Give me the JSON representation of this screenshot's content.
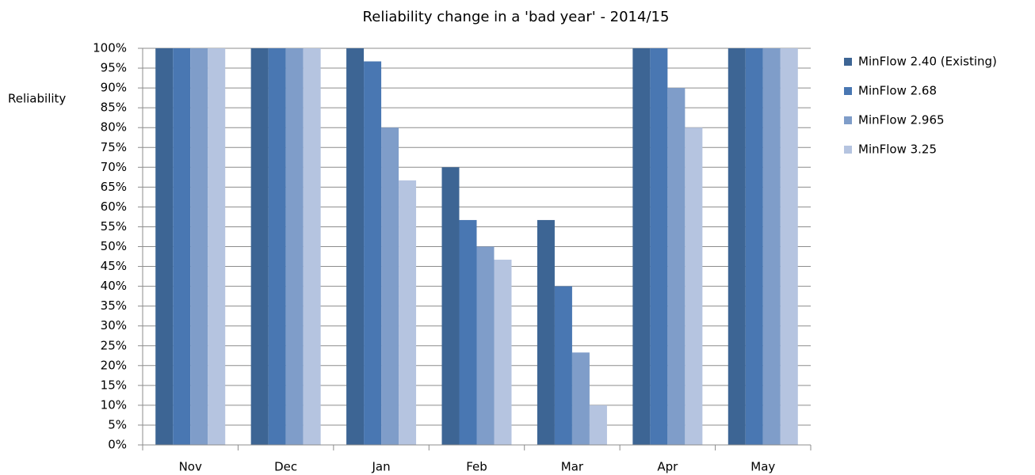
{
  "chart_data": {
    "type": "bar",
    "title": "Reliability change in a 'bad year' - 2014/15",
    "y_label": "Reliability",
    "categories": [
      "Nov",
      "Dec",
      "Jan",
      "Feb",
      "Mar",
      "Apr",
      "May"
    ],
    "series": [
      {
        "name": "MinFlow 2.40 (Existing)",
        "color": "#3d6594",
        "values": [
          100,
          100,
          100,
          70,
          56.7,
          100,
          100
        ]
      },
      {
        "name": "MinFlow 2.68",
        "color": "#4977b2",
        "values": [
          100,
          100,
          96.7,
          56.7,
          40,
          100,
          100
        ]
      },
      {
        "name": "MinFlow 2.965",
        "color": "#7f9dc9",
        "values": [
          100,
          100,
          80,
          50,
          23.3,
          90,
          100
        ]
      },
      {
        "name": "MinFlow 3.25",
        "color": "#b5c4e0",
        "values": [
          100,
          100,
          66.7,
          46.7,
          10,
          80,
          100
        ]
      }
    ],
    "ylim": [
      0,
      100
    ],
    "yticks": [
      {
        "value": 0,
        "label": "0%"
      },
      {
        "value": 5,
        "label": "5%"
      },
      {
        "value": 10,
        "label": "10%"
      },
      {
        "value": 15,
        "label": "15%"
      },
      {
        "value": 20,
        "label": "20%"
      },
      {
        "value": 25,
        "label": "25%"
      },
      {
        "value": 30,
        "label": "30%"
      },
      {
        "value": 35,
        "label": "35%"
      },
      {
        "value": 40,
        "label": "40%"
      },
      {
        "value": 45,
        "label": "45%"
      },
      {
        "value": 50,
        "label": "50%"
      },
      {
        "value": 55,
        "label": "55%"
      },
      {
        "value": 60,
        "label": "60%"
      },
      {
        "value": 65,
        "label": "65%"
      },
      {
        "value": 70,
        "label": "70%"
      },
      {
        "value": 75,
        "label": "75%"
      },
      {
        "value": 80,
        "label": "80%"
      },
      {
        "value": 85,
        "label": "85%"
      },
      {
        "value": 90,
        "label": "90%"
      },
      {
        "value": 95,
        "label": "95%"
      },
      {
        "value": 100,
        "label": "100%"
      }
    ],
    "grid": true,
    "legend": "right"
  }
}
